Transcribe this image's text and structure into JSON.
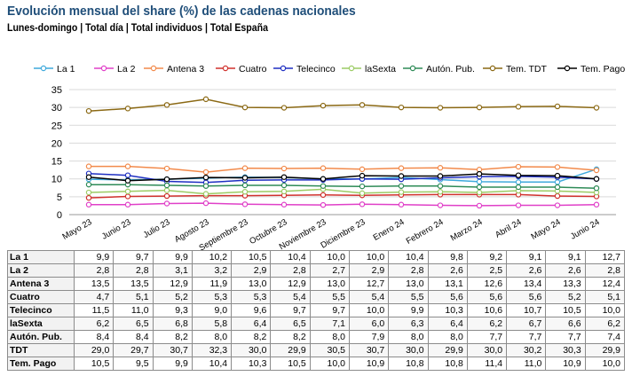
{
  "title": "Evolución mensual del share (%) de las cadenas nacionales",
  "subtitle": "Lunes-domingo  | Total día | Total individuos | Total España",
  "chart_data": {
    "type": "line",
    "categories": [
      "Mayo 23",
      "Junio 23",
      "Julio 23",
      "Agosto 23",
      "Septiembre 23",
      "Octubre 23",
      "Noviembre 23",
      "Diciembre 23",
      "Enero 24",
      "Febrero 24",
      "Marzo 24",
      "Abril 24",
      "Mayo 24",
      "Junio 24"
    ],
    "ylim": [
      0,
      35
    ],
    "yticks": [
      0,
      5,
      10,
      15,
      20,
      25,
      30,
      35
    ],
    "grid": true,
    "legend_position": "top",
    "series": [
      {
        "name": "La 1",
        "color": "#3fa9dc",
        "values": [
          9.9,
          9.7,
          9.9,
          10.2,
          10.5,
          10.4,
          10.0,
          10.0,
          10.4,
          9.8,
          9.2,
          9.1,
          9.1,
          12.7
        ]
      },
      {
        "name": "La 2",
        "color": "#e040c8",
        "values": [
          2.8,
          2.8,
          3.1,
          3.2,
          2.9,
          2.8,
          2.7,
          2.9,
          2.8,
          2.6,
          2.5,
          2.6,
          2.6,
          2.8
        ]
      },
      {
        "name": "Antena 3",
        "color": "#f28a4b",
        "values": [
          13.5,
          13.5,
          12.9,
          11.9,
          13.0,
          12.9,
          13.0,
          12.7,
          13.0,
          13.1,
          12.6,
          13.4,
          13.3,
          12.4
        ]
      },
      {
        "name": "Cuatro",
        "color": "#d0312d",
        "values": [
          4.7,
          5.1,
          5.2,
          5.3,
          5.3,
          5.4,
          5.5,
          5.4,
          5.5,
          5.6,
          5.6,
          5.6,
          5.2,
          5.1
        ]
      },
      {
        "name": "Telecinco",
        "color": "#1f2fc2",
        "values": [
          11.5,
          11.0,
          9.3,
          9.0,
          9.6,
          9.7,
          9.7,
          10.0,
          9.9,
          10.3,
          10.6,
          10.7,
          10.5,
          10.0
        ]
      },
      {
        "name": "laSexta",
        "color": "#9ccc65",
        "values": [
          6.2,
          6.5,
          6.8,
          5.8,
          6.4,
          6.5,
          7.1,
          6.0,
          6.3,
          6.4,
          6.2,
          6.7,
          6.6,
          6.2
        ]
      },
      {
        "name": "Autón. Pub.",
        "color": "#2e8b57",
        "values": [
          8.4,
          8.4,
          8.2,
          8.0,
          8.2,
          8.2,
          8.0,
          7.9,
          8.0,
          8.0,
          7.7,
          7.7,
          7.7,
          7.4
        ]
      },
      {
        "name": "Tem. TDT",
        "color": "#8b6914",
        "values": [
          29.0,
          29.7,
          30.7,
          32.3,
          30.0,
          29.9,
          30.5,
          30.7,
          30.0,
          29.9,
          30.0,
          30.2,
          30.3,
          29.9
        ]
      },
      {
        "name": "Tem. Pago",
        "color": "#000000",
        "values": [
          10.5,
          9.5,
          9.9,
          10.4,
          10.3,
          10.5,
          10.0,
          10.9,
          10.8,
          10.8,
          11.4,
          11.0,
          10.9,
          10.0
        ]
      }
    ]
  },
  "table": {
    "rows": [
      {
        "label": "La 1",
        "values": [
          "9,9",
          "9,7",
          "9,9",
          "10,2",
          "10,5",
          "10,4",
          "10,0",
          "10,0",
          "10,4",
          "9,8",
          "9,2",
          "9,1",
          "9,1",
          "12,7"
        ]
      },
      {
        "label": "La 2",
        "values": [
          "2,8",
          "2,8",
          "3,1",
          "3,2",
          "2,9",
          "2,8",
          "2,7",
          "2,9",
          "2,8",
          "2,6",
          "2,5",
          "2,6",
          "2,6",
          "2,8"
        ]
      },
      {
        "label": "Antena 3",
        "values": [
          "13,5",
          "13,5",
          "12,9",
          "11,9",
          "13,0",
          "12,9",
          "13,0",
          "12,7",
          "13,0",
          "13,1",
          "12,6",
          "13,4",
          "13,3",
          "12,4"
        ]
      },
      {
        "label": "Cuatro",
        "values": [
          "4,7",
          "5,1",
          "5,2",
          "5,3",
          "5,3",
          "5,4",
          "5,5",
          "5,4",
          "5,5",
          "5,6",
          "5,6",
          "5,6",
          "5,2",
          "5,1"
        ]
      },
      {
        "label": "Telecinco",
        "values": [
          "11,5",
          "11,0",
          "9,3",
          "9,0",
          "9,6",
          "9,7",
          "9,7",
          "10,0",
          "9,9",
          "10,3",
          "10,6",
          "10,7",
          "10,5",
          "10,0"
        ]
      },
      {
        "label": "laSexta",
        "values": [
          "6,2",
          "6,5",
          "6,8",
          "5,8",
          "6,4",
          "6,5",
          "7,1",
          "6,0",
          "6,3",
          "6,4",
          "6,2",
          "6,7",
          "6,6",
          "6,2"
        ]
      },
      {
        "label": "Autón. Pub.",
        "values": [
          "8,4",
          "8,4",
          "8,2",
          "8,0",
          "8,2",
          "8,2",
          "8,0",
          "7,9",
          "8,0",
          "8,0",
          "7,7",
          "7,7",
          "7,7",
          "7,4"
        ]
      },
      {
        "label": "TDT",
        "values": [
          "29,0",
          "29,7",
          "30,7",
          "32,3",
          "30,0",
          "29,9",
          "30,5",
          "30,7",
          "30,0",
          "29,9",
          "30,0",
          "30,2",
          "30,3",
          "29,9"
        ]
      },
      {
        "label": "Tem. Pago",
        "values": [
          "10,5",
          "9,5",
          "9,9",
          "10,4",
          "10,3",
          "10,5",
          "10,0",
          "10,9",
          "10,8",
          "10,8",
          "11,4",
          "11,0",
          "10,9",
          "10,0"
        ]
      }
    ]
  }
}
